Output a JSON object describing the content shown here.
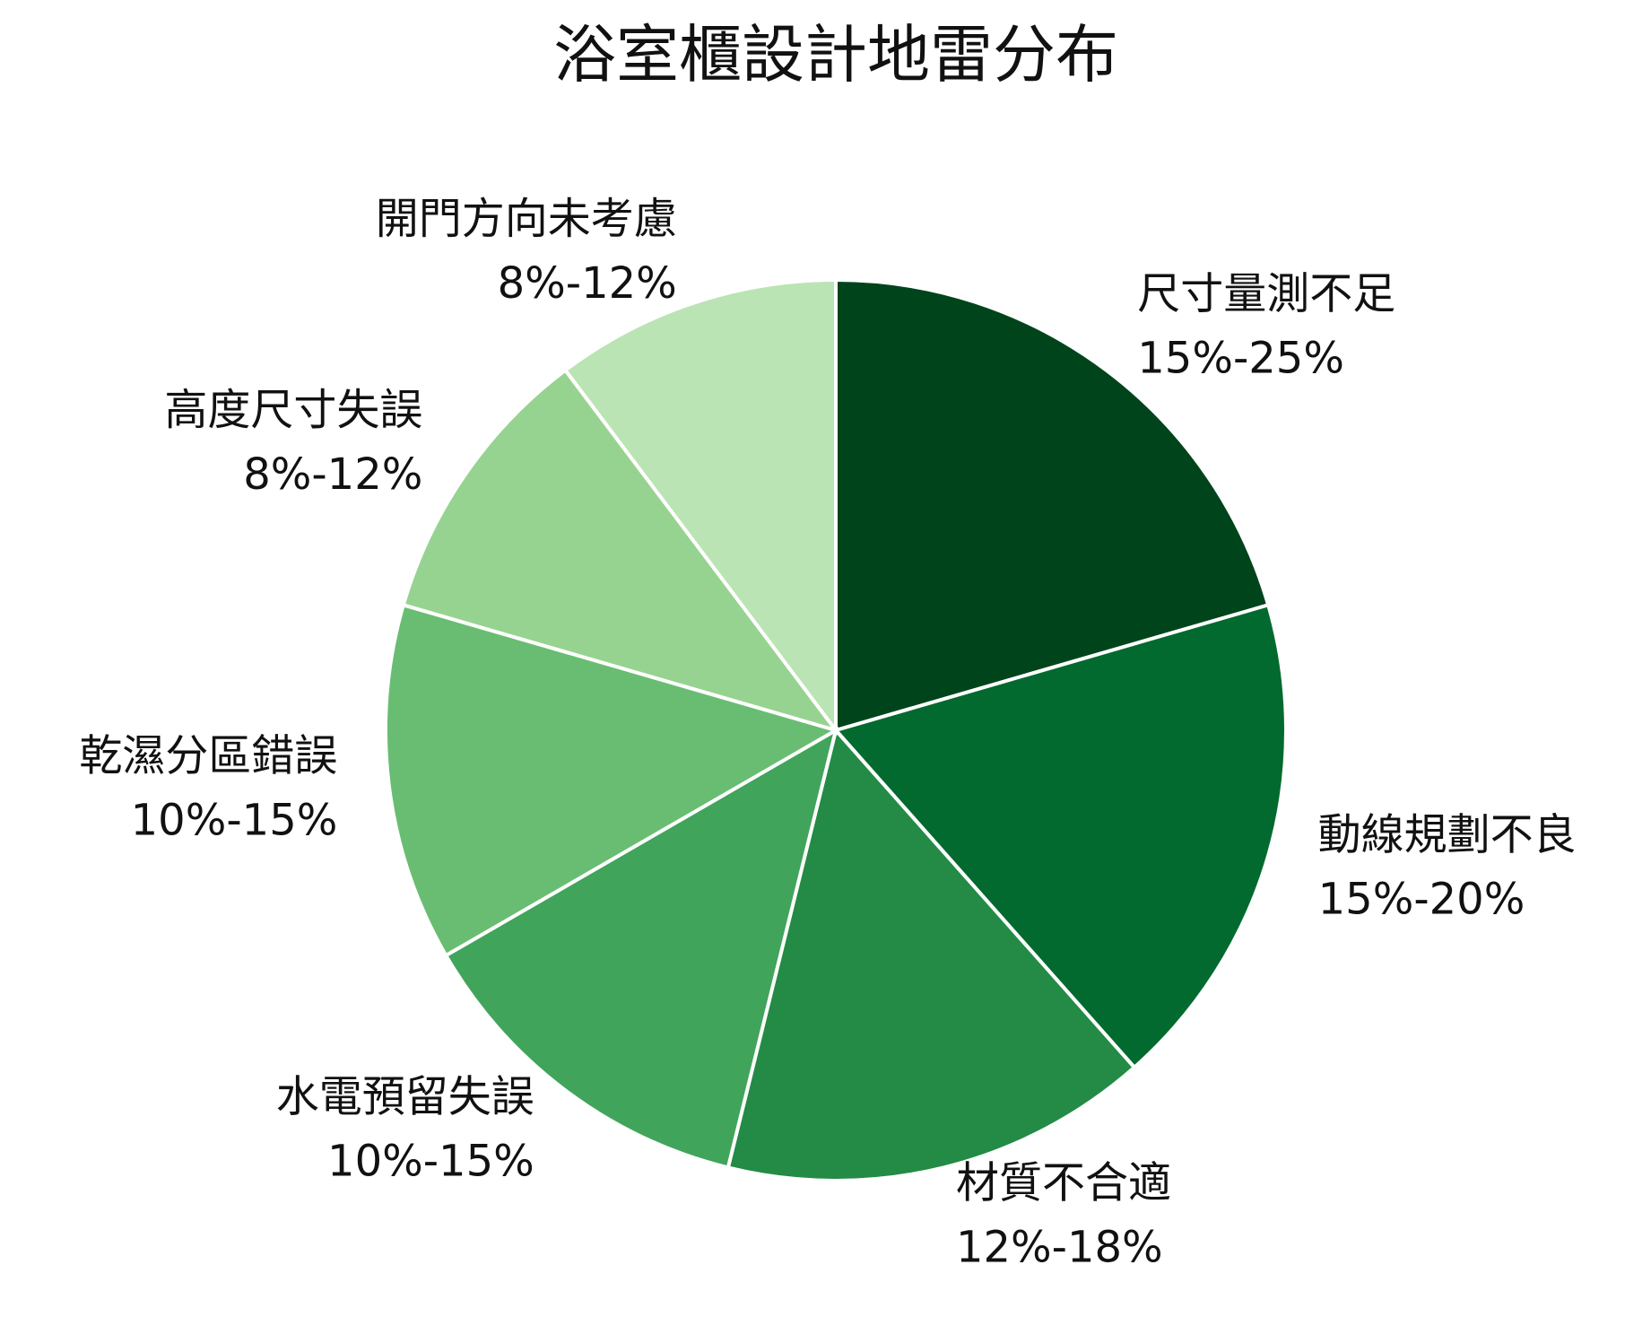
{
  "chart_data": {
    "type": "pie",
    "title": "浴室櫃設計地雷分布",
    "categories": [
      "尺寸量測不足",
      "動線規劃不良",
      "材質不合適",
      "水電預留失誤",
      "乾濕分區錯誤",
      "高度尺寸失誤",
      "開門方向未考慮"
    ],
    "values": [
      20,
      17.5,
      15,
      12.5,
      12.5,
      10,
      10
    ],
    "value_labels": [
      "15%-25%",
      "15%-20%",
      "12%-18%",
      "10%-15%",
      "10%-15%",
      "8%-12%",
      "8%-12%"
    ],
    "colors": [
      "#00441b",
      "#026a2e",
      "#238b45",
      "#41a45b",
      "#69bd72",
      "#97d390",
      "#bae4b3"
    ]
  }
}
